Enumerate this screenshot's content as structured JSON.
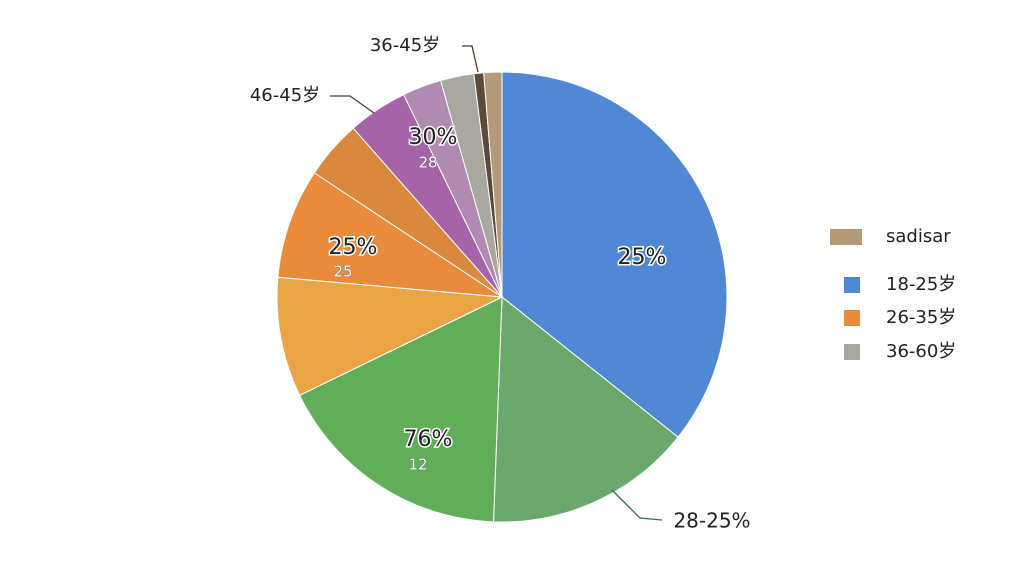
{
  "chart_data": {
    "type": "pie",
    "values": [
      35.7,
      14.9,
      17.2,
      8.6,
      7.9,
      4.2,
      4.3,
      2.8,
      2.4,
      0.7,
      1.3
    ],
    "colors": [
      "#5088d4",
      "#6aa86e",
      "#62ad5a",
      "#e8a445",
      "#e88c3c",
      "#d9883e",
      "#a664a8",
      "#b08ab0",
      "#a8a8a0",
      "#5a4a3a",
      "#b49a78"
    ],
    "annotations": [
      "36-45岁",
      "46-45岁",
      "30%",
      "28",
      "25%",
      "25",
      "25%",
      "76%",
      "12",
      "28-25%"
    ],
    "legend": [
      {
        "name": "sadisar",
        "color": "#b49a78"
      },
      {
        "name": "18-25岁",
        "color": "#5088d4"
      },
      {
        "name": "26-35岁",
        "color": "#e88c3c"
      },
      {
        "name": "36-60岁",
        "color": "#a8a8a0"
      }
    ]
  }
}
